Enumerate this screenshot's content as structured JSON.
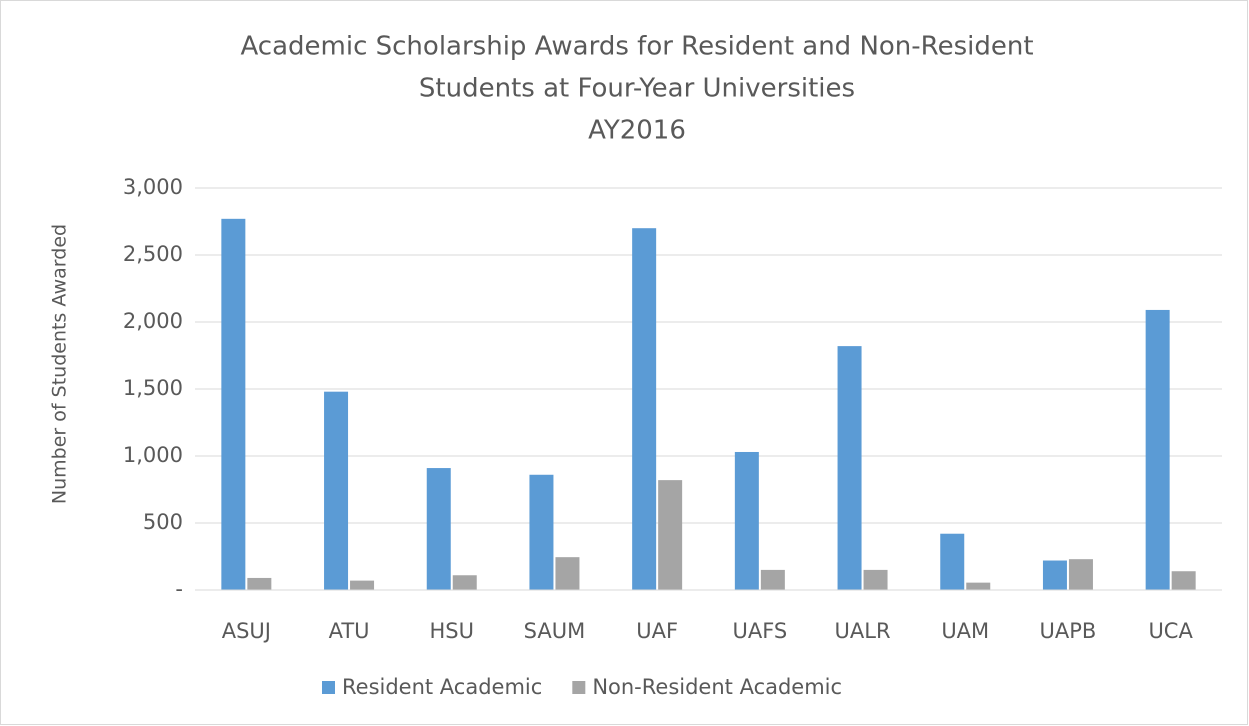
{
  "chart_data": {
    "type": "bar",
    "title": [
      "Academic Scholarship Awards for Resident and Non-Resident",
      "Students at Four-Year Universities",
      "AY2016"
    ],
    "y_axis_label": "Number of Students Awarded",
    "categories": [
      "ASUJ",
      "ATU",
      "HSU",
      "SAUM",
      "UAF",
      "UAFS",
      "UALR",
      "UAM",
      "UAPB",
      "UCA"
    ],
    "series": [
      {
        "name": "Resident Academic",
        "color": "#5b9bd5",
        "values": [
          2770,
          1480,
          910,
          860,
          2700,
          1030,
          1820,
          420,
          220,
          2090
        ]
      },
      {
        "name": "Non-Resident Academic",
        "color": "#a5a5a5",
        "values": [
          90,
          70,
          110,
          245,
          820,
          150,
          150,
          55,
          230,
          140
        ]
      }
    ],
    "ylim": [
      0,
      3000
    ],
    "yticks": [
      {
        "value": 0,
        "label": "-"
      },
      500,
      {
        "value": 1000,
        "label": "1,000"
      },
      {
        "value": 1500,
        "label": "1,500"
      },
      {
        "value": 2000,
        "label": "2,000"
      },
      {
        "value": 2500,
        "label": "2,500"
      },
      {
        "value": 3000,
        "label": "3,000"
      }
    ],
    "grid": true,
    "legend": "bottom"
  }
}
